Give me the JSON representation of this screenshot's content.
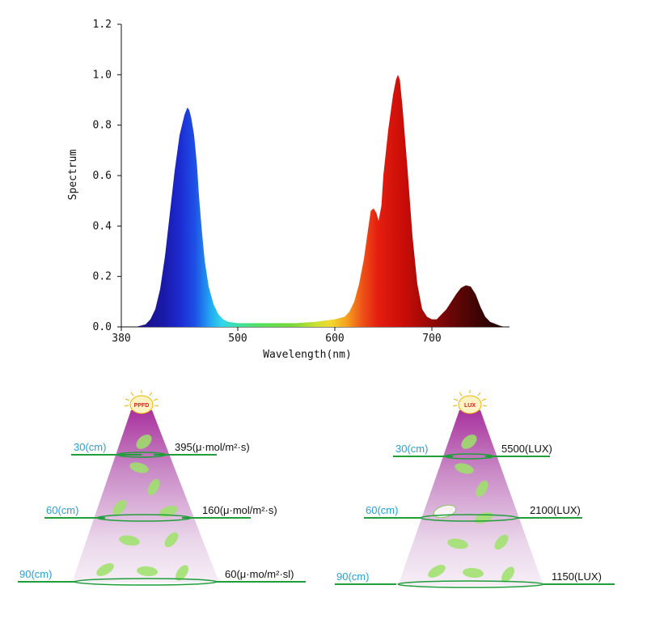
{
  "chart_data": {
    "type": "area",
    "xlabel": "Wavelength(nm)",
    "ylabel": "Spectrum",
    "xlim": [
      380,
      780
    ],
    "ylim": [
      0,
      1.2
    ],
    "x_ticks": [
      380,
      500,
      600,
      700
    ],
    "y_ticks": [
      0.0,
      0.2,
      0.4,
      0.6,
      0.8,
      1.0,
      1.2
    ],
    "y_tick_labels": [
      "0.0",
      "0.2",
      "0.4",
      "0.6",
      "0.8",
      "1.0",
      "1.2"
    ],
    "grid": false,
    "fill": "wavelength-colored spectrum gradient",
    "series": [
      {
        "x": [
          380,
          395,
          405,
          410,
          415,
          420,
          425,
          430,
          435,
          440,
          445,
          448,
          450,
          452,
          455,
          458,
          460,
          463,
          466,
          470,
          475,
          480,
          485,
          490,
          500,
          520,
          540,
          560,
          580,
          600,
          610,
          615,
          620,
          625,
          630,
          634,
          637,
          640,
          643,
          645,
          648,
          650,
          655,
          660,
          663,
          665,
          667,
          670,
          675,
          680,
          685,
          690,
          695,
          700,
          705,
          710,
          715,
          720,
          725,
          730,
          735,
          740,
          745,
          750,
          755,
          760,
          770,
          775
        ],
        "y": [
          0.0,
          0.0,
          0.01,
          0.03,
          0.07,
          0.15,
          0.28,
          0.45,
          0.62,
          0.76,
          0.84,
          0.87,
          0.86,
          0.83,
          0.76,
          0.64,
          0.52,
          0.38,
          0.26,
          0.16,
          0.09,
          0.05,
          0.03,
          0.02,
          0.015,
          0.015,
          0.015,
          0.015,
          0.02,
          0.03,
          0.04,
          0.06,
          0.1,
          0.17,
          0.27,
          0.38,
          0.46,
          0.47,
          0.45,
          0.42,
          0.48,
          0.6,
          0.78,
          0.92,
          0.98,
          1.0,
          0.98,
          0.86,
          0.62,
          0.36,
          0.17,
          0.07,
          0.04,
          0.03,
          0.03,
          0.05,
          0.07,
          0.1,
          0.13,
          0.155,
          0.165,
          0.16,
          0.13,
          0.08,
          0.04,
          0.02,
          0.005,
          0.0
        ]
      }
    ]
  },
  "ppfd_panel": {
    "badge": "PPFD",
    "rows": [
      {
        "distance": "30(cm)",
        "value": "395(μ·mol/m²·s)"
      },
      {
        "distance": "60(cm)",
        "value": "160(μ·mol/m²·s)"
      },
      {
        "distance": "90(cm)",
        "value": "60(μ·mo/m²·sl)"
      }
    ]
  },
  "lux_panel": {
    "badge": "LUX",
    "rows": [
      {
        "distance": "30(cm)",
        "value": "5500(LUX)"
      },
      {
        "distance": "60(cm)",
        "value": "2100(LUX)"
      },
      {
        "distance": "90(cm)",
        "value": "1150(LUX)"
      }
    ]
  },
  "colors": {
    "axis": "#111111",
    "distance_text": "#29a0d8",
    "marker_line": "#1f9e3a",
    "cone_top": "#a9339e",
    "cone_bottom": "#f6eef6",
    "leaf": "#9ee36a",
    "badge_text": "#d2231f",
    "badge_fill": "#fff3c4",
    "badge_rays": "#f0b400"
  }
}
